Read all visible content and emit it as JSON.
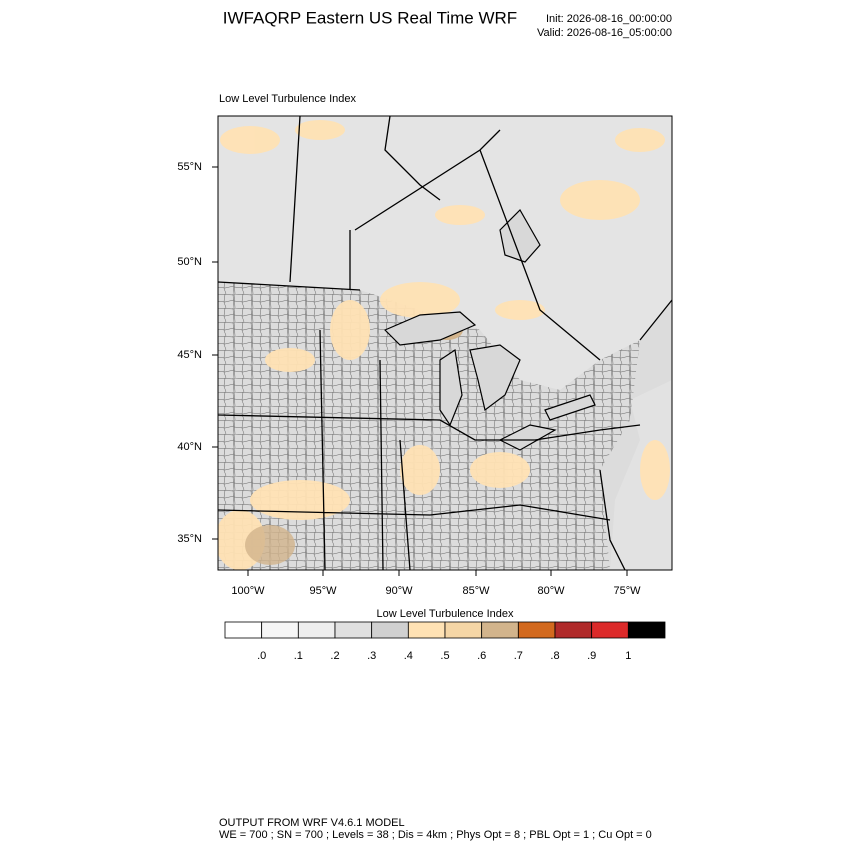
{
  "header": {
    "title": "IWFAQRP Eastern US Real Time WRF",
    "init": "Init: 2026-08-16_00:00:00",
    "valid": "Valid: 2026-08-16_05:00:00"
  },
  "map": {
    "subtitle": "Low Level Turbulence Index",
    "lat_labels": [
      "55°N",
      "50°N",
      "45°N",
      "40°N",
      "35°N"
    ],
    "lon_labels": [
      "100°W",
      "95°W",
      "90°W",
      "85°W",
      "80°W",
      "75°W"
    ]
  },
  "colorbar": {
    "title": "Low Level Turbulence Index",
    "colors": [
      "#ffffff",
      "#f6f6f6",
      "#eeeeee",
      "#e0e0e0",
      "#d0d0d0",
      "#ffe2b4",
      "#f5d6a6",
      "#d2b48c",
      "#d2691e",
      "#b02a2a",
      "#dc2a2a",
      "#000000"
    ],
    "labels": [
      ".0",
      ".1",
      ".2",
      ".3",
      ".4",
      ".5",
      ".6",
      ".7",
      ".8",
      ".9",
      "1"
    ]
  },
  "footer": {
    "line1": "OUTPUT FROM WRF V4.6.1 MODEL",
    "line2": "WE = 700 ; SN = 700 ; Levels = 38 ; Dis = 4km ; Phys Opt = 8 ; PBL Opt = 1 ; Cu Opt = 0"
  }
}
